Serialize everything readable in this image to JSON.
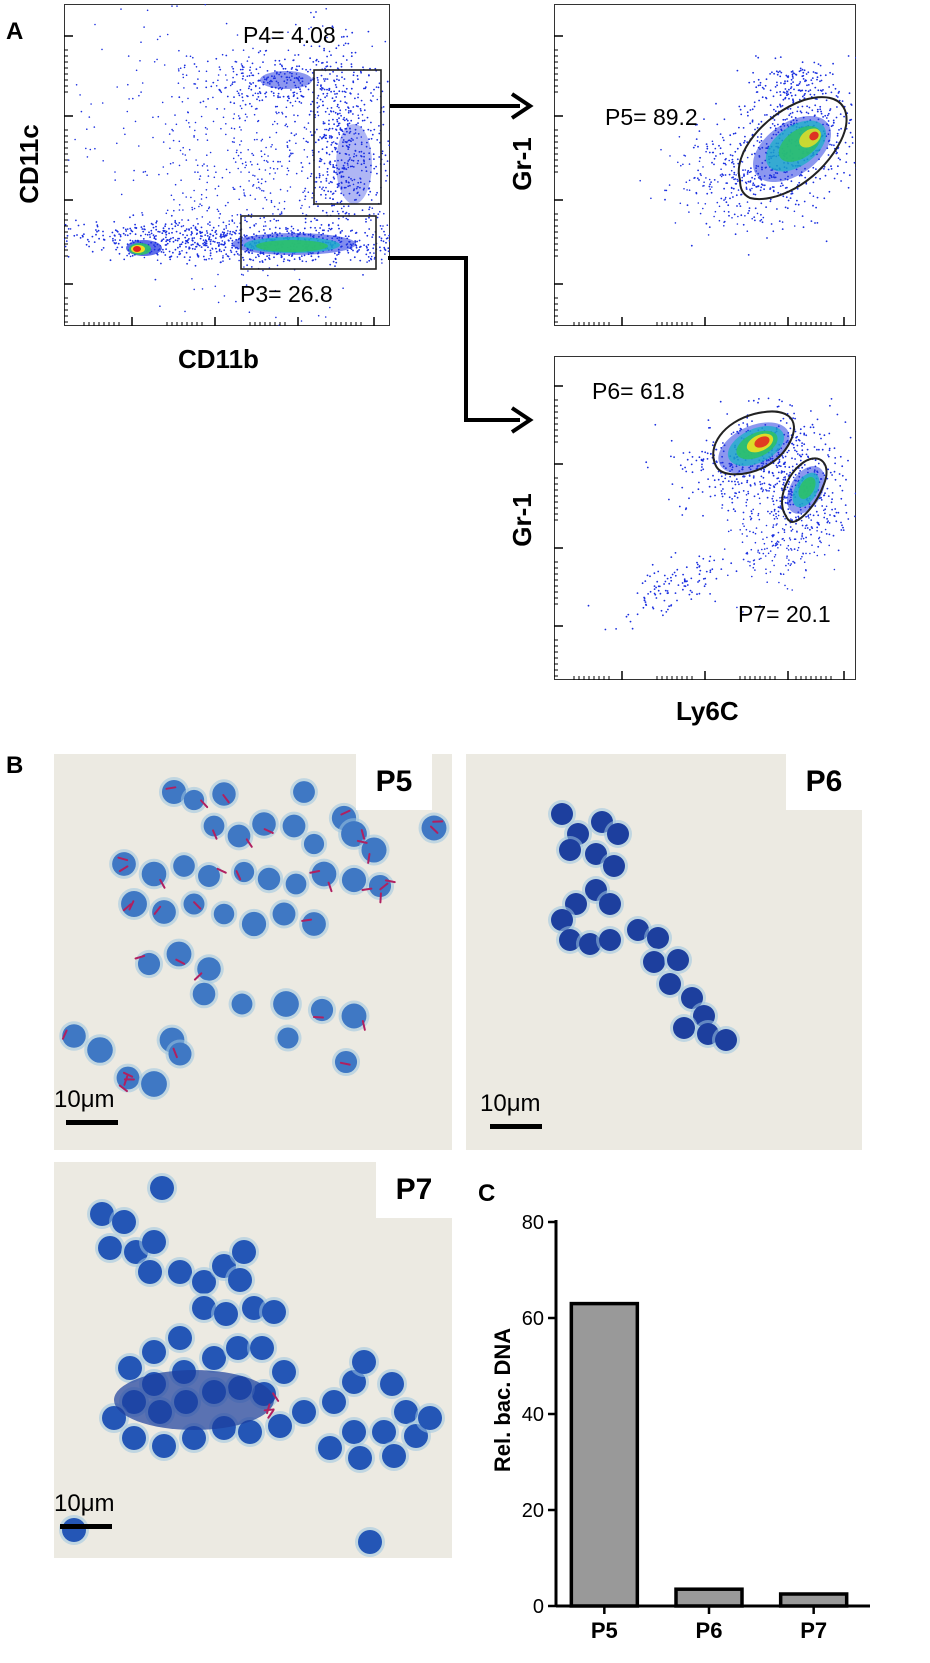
{
  "panel_a": {
    "letter": "A",
    "plot1": {
      "ylabel": "CD11c",
      "xlabel": "CD11b",
      "gates": [
        {
          "name": "P4",
          "label": "P4= 4.08"
        },
        {
          "name": "P3",
          "label": "P3= 26.8"
        }
      ]
    },
    "plot2": {
      "ylabel": "Gr-1",
      "gates": [
        {
          "name": "P5",
          "label": "P5= 89.2"
        }
      ]
    },
    "plot3": {
      "ylabel": "Gr-1",
      "xlabel": "Ly6C",
      "gates": [
        {
          "name": "P6",
          "label": "P6= 61.8"
        },
        {
          "name": "P7",
          "label": "P7= 20.1"
        }
      ]
    }
  },
  "panel_b": {
    "letter": "B",
    "images": [
      {
        "tag": "P5",
        "scale": "10μm"
      },
      {
        "tag": "P6",
        "scale": "10μm"
      },
      {
        "tag": "P7",
        "scale": "10μm"
      }
    ]
  },
  "panel_c": {
    "letter": "C"
  },
  "chart_data": {
    "type": "bar",
    "categories": [
      "P5",
      "P6",
      "P7"
    ],
    "values": [
      63,
      3.5,
      2.5
    ],
    "title": "",
    "xlabel": "",
    "ylabel": "Rel. bac. DNA",
    "ylim": [
      0,
      80
    ],
    "yticks": [
      0,
      20,
      40,
      60,
      80
    ],
    "bar_color": "#999999",
    "grid": false
  },
  "colors": {
    "dot_blue": "#1a2fe0",
    "dense_green": "#2cc06a",
    "dense_yellow": "#f0e020",
    "dense_red": "#e02020",
    "stain_blue": "#2c5cb8",
    "bacteria_red": "#b02060"
  }
}
